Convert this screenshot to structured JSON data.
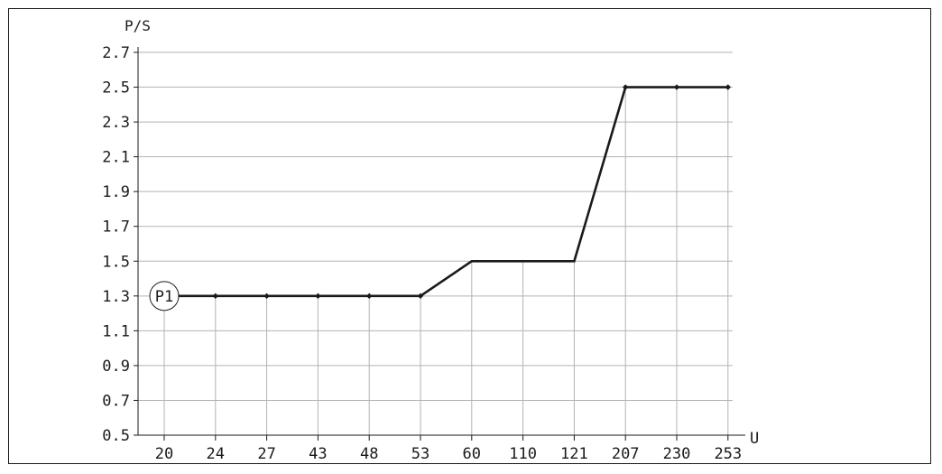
{
  "chart_data": {
    "type": "line",
    "categories": [
      "20",
      "24",
      "27",
      "43",
      "48",
      "53",
      "60",
      "110",
      "121",
      "207",
      "230",
      "253"
    ],
    "series": [
      {
        "values": [
          1.3,
          1.3,
          1.3,
          1.3,
          1.3,
          1.3,
          1.5,
          1.5,
          1.5,
          2.5,
          2.5,
          2.5
        ],
        "markers": [
          true,
          true,
          true,
          true,
          true,
          true,
          false,
          false,
          false,
          true,
          true,
          true
        ]
      }
    ],
    "xlabel": "U",
    "ylabel": "P/S",
    "ylim": [
      0.5,
      2.7
    ],
    "yticks": [
      "0.5",
      "0.7",
      "0.9",
      "1.1",
      "1.3",
      "1.5",
      "1.7",
      "1.9",
      "2.1",
      "2.3",
      "2.5",
      "2.7"
    ],
    "grid": true,
    "annotations": [
      {
        "text": "P1",
        "category": "20",
        "value": 1.3
      }
    ],
    "colors": {
      "line": "#1a1a1a",
      "grid": "#b3b3b3",
      "axis": "#1a1a1a"
    }
  }
}
